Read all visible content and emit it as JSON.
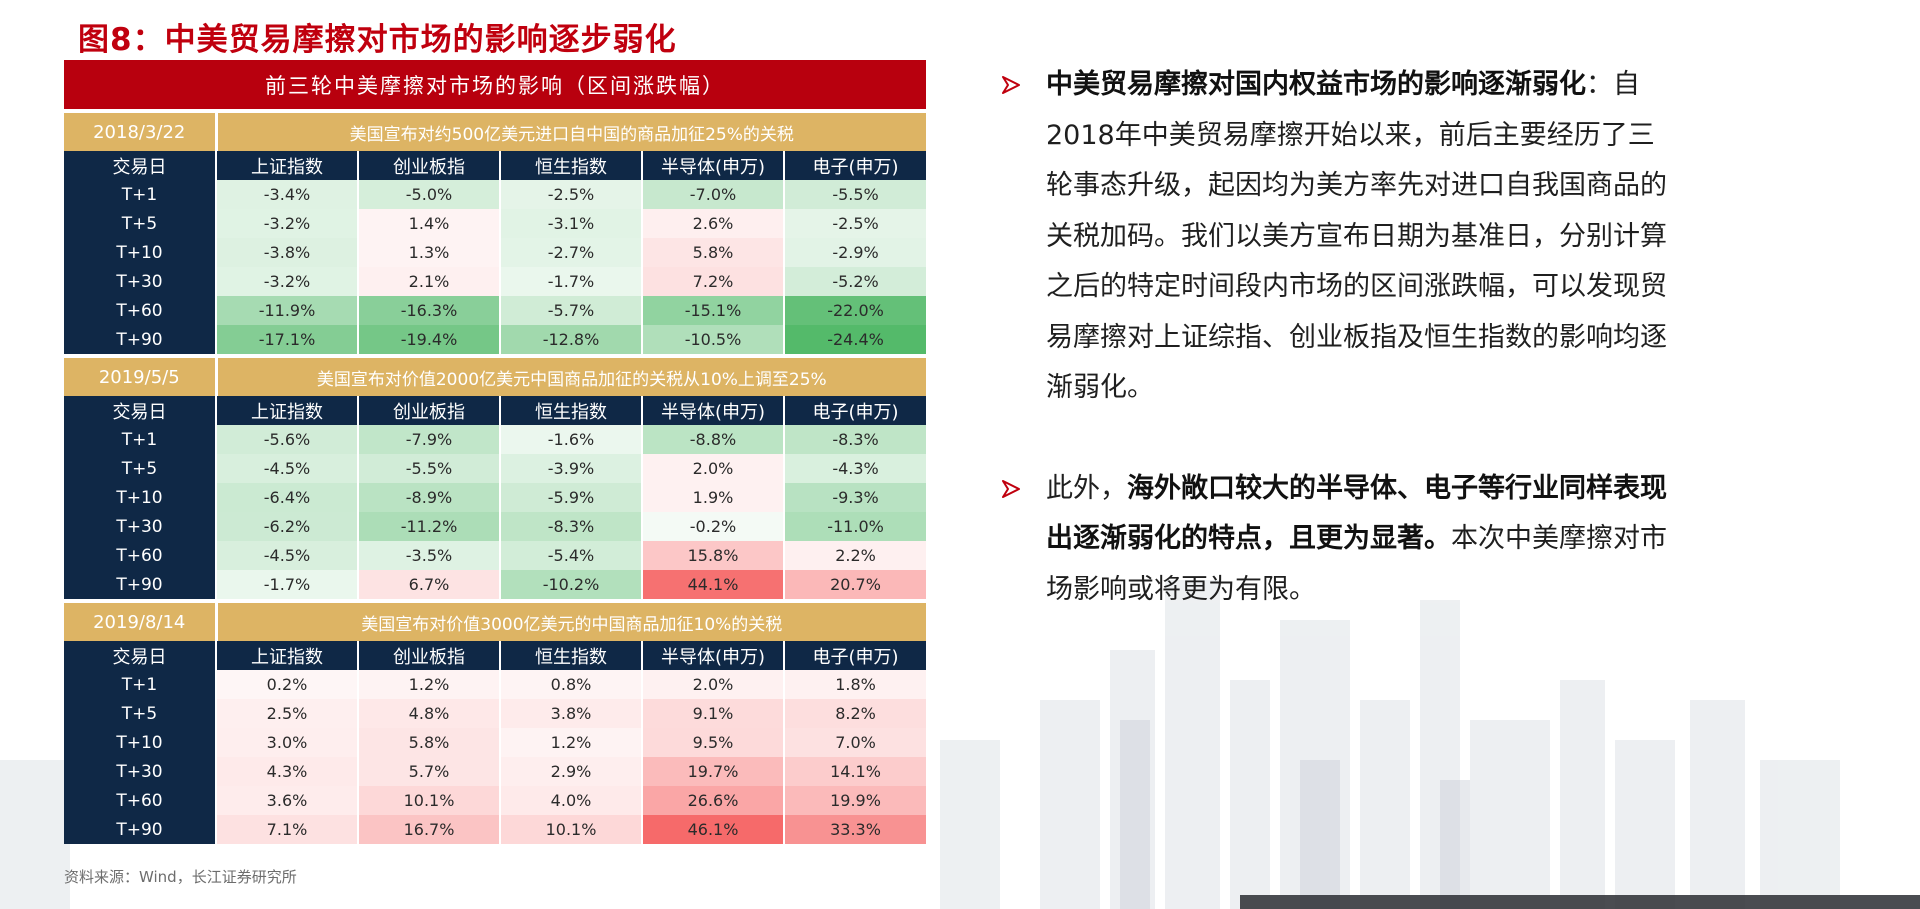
{
  "figure_title": "图8：中美贸易摩擦对市场的影响逐步弱化",
  "table_title": "前三轮中美摩擦对市场的影响（区间涨跌幅）",
  "columns": [
    "交易日",
    "上证指数",
    "创业板指",
    "恒生指数",
    "半导体(申万)",
    "电子(申万)"
  ],
  "rounds": [
    {
      "date": "2018/3/22",
      "event": "美国宣布对约500亿美元进口自中国的商品加征25%的关税",
      "rows": [
        {
          "day": "T+1",
          "values": [
            "-3.4%",
            "-5.0%",
            "-2.5%",
            "-7.0%",
            "-5.5%"
          ]
        },
        {
          "day": "T+5",
          "values": [
            "-3.2%",
            "1.4%",
            "-3.1%",
            "2.6%",
            "-2.5%"
          ]
        },
        {
          "day": "T+10",
          "values": [
            "-3.8%",
            "1.3%",
            "-2.7%",
            "5.8%",
            "-2.9%"
          ]
        },
        {
          "day": "T+30",
          "values": [
            "-3.2%",
            "2.1%",
            "-1.7%",
            "7.2%",
            "-5.2%"
          ]
        },
        {
          "day": "T+60",
          "values": [
            "-11.9%",
            "-16.3%",
            "-5.7%",
            "-15.1%",
            "-22.0%"
          ]
        },
        {
          "day": "T+90",
          "values": [
            "-17.1%",
            "-19.4%",
            "-12.8%",
            "-10.5%",
            "-24.4%"
          ]
        }
      ]
    },
    {
      "date": "2019/5/5",
      "event": "美国宣布对价值2000亿美元中国商品加征的关税从10%上调至25%",
      "rows": [
        {
          "day": "T+1",
          "values": [
            "-5.6%",
            "-7.9%",
            "-1.6%",
            "-8.8%",
            "-8.3%"
          ]
        },
        {
          "day": "T+5",
          "values": [
            "-4.5%",
            "-5.5%",
            "-3.9%",
            "2.0%",
            "-4.3%"
          ]
        },
        {
          "day": "T+10",
          "values": [
            "-6.4%",
            "-8.9%",
            "-5.9%",
            "1.9%",
            "-9.3%"
          ]
        },
        {
          "day": "T+30",
          "values": [
            "-6.2%",
            "-11.2%",
            "-8.3%",
            "-0.2%",
            "-11.0%"
          ]
        },
        {
          "day": "T+60",
          "values": [
            "-4.5%",
            "-3.5%",
            "-5.4%",
            "15.8%",
            "2.2%"
          ]
        },
        {
          "day": "T+90",
          "values": [
            "-1.7%",
            "6.7%",
            "-10.2%",
            "44.1%",
            "20.7%"
          ]
        }
      ]
    },
    {
      "date": "2019/8/14",
      "event": "美国宣布对价值3000亿美元的中国商品加征10%的关税",
      "rows": [
        {
          "day": "T+1",
          "values": [
            "0.2%",
            "1.2%",
            "0.8%",
            "2.0%",
            "1.8%"
          ]
        },
        {
          "day": "T+5",
          "values": [
            "2.5%",
            "4.8%",
            "3.8%",
            "9.1%",
            "8.2%"
          ]
        },
        {
          "day": "T+10",
          "values": [
            "3.0%",
            "5.8%",
            "1.2%",
            "9.5%",
            "7.0%"
          ]
        },
        {
          "day": "T+30",
          "values": [
            "4.3%",
            "5.7%",
            "2.9%",
            "19.7%",
            "14.1%"
          ]
        },
        {
          "day": "T+60",
          "values": [
            "3.6%",
            "10.1%",
            "4.0%",
            "26.6%",
            "19.9%"
          ]
        },
        {
          "day": "T+90",
          "values": [
            "7.1%",
            "16.7%",
            "10.1%",
            "46.1%",
            "33.3%"
          ]
        }
      ]
    }
  ],
  "source": "资料来源：Wind，长江证券研究所",
  "bullets": [
    {
      "bold": "中美贸易摩擦对国内权益市场的影响逐渐弱化",
      "text": "：自2018年中美贸易摩擦开始以来，前后主要经历了三轮事态升级，起因均为美方率先对进口自我国商品的关税加码。我们以美方宣布日期为基准日，分别计算之后的特定时间段内市场的区间涨跌幅，可以发现贸易摩擦对上证综指、创业板指及恒生指数的影响均逐渐弱化。"
    },
    {
      "pre": "此外，",
      "bold": "海外敞口较大的半导体、电子等行业同样表现出逐渐弱化的特点，且更为显著。",
      "text": "本次中美摩擦对市场影响或将更为有限。"
    }
  ],
  "colors": {
    "title_red": "#c0000e",
    "header_red": "#b8000e",
    "event_gold": "#ddb464",
    "navy": "#0f2846",
    "neg_green": "#41b25a",
    "pos_red": "#f55a5a",
    "bullet_red": "#c0000e"
  },
  "icons": {
    "bullet": "red-outline-arrow-icon"
  }
}
